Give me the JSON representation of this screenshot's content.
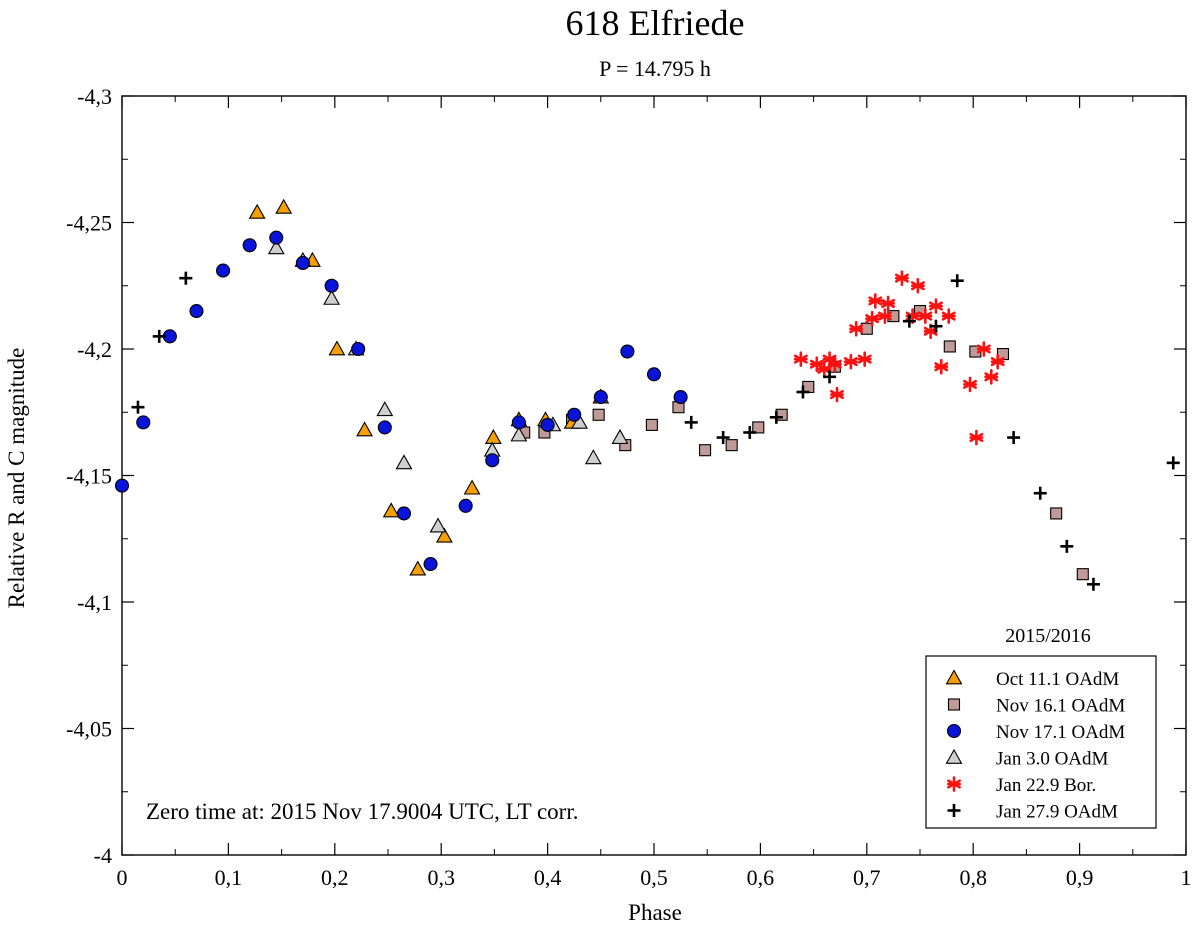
{
  "chart_data": {
    "type": "scatter",
    "title": "618 Elfriede",
    "subtitle": "P = 14.795 h",
    "xlabel": "Phase",
    "ylabel": "Relative R and C magnitude",
    "xlim": [
      0,
      1
    ],
    "ylim": [
      -4.3,
      -4.0
    ],
    "y_inverted": true,
    "x_ticks": [
      0,
      0.1,
      0.2,
      0.3,
      0.4,
      0.5,
      0.6,
      0.7,
      0.8,
      0.9,
      1
    ],
    "x_tick_labels": [
      "0",
      "0,1",
      "0,2",
      "0,3",
      "0,4",
      "0,5",
      "0,6",
      "0,7",
      "0,8",
      "0,9",
      "1"
    ],
    "y_ticks": [
      -4.3,
      -4.25,
      -4.2,
      -4.15,
      -4.1,
      -4.05,
      -4.0
    ],
    "y_tick_labels": [
      "-4,3",
      "-4,25",
      "-4,2",
      "-4,15",
      "-4,1",
      "-4,05",
      "-4"
    ],
    "annotation": "Zero time at: 2015 Nov 17.9004 UTC, LT corr.",
    "legend_title": "2015/2016",
    "legend_position": "bottom-right",
    "series": [
      {
        "name": "Oct 11.1 OAdM",
        "marker": "triangle",
        "color": "#f5a000",
        "x": [
          0.127,
          0.152,
          0.179,
          0.202,
          0.228,
          0.253,
          0.278,
          0.303,
          0.329,
          0.349,
          0.373,
          0.398,
          0.423,
          0.45
        ],
        "y": [
          -4.254,
          -4.256,
          -4.235,
          -4.2,
          -4.168,
          -4.136,
          -4.113,
          -4.126,
          -4.145,
          -4.165,
          -4.172,
          -4.172,
          -4.171,
          -4.181
        ]
      },
      {
        "name": "Nov 16.1 OAdM",
        "marker": "square",
        "color": "#c09a96",
        "x": [
          0.378,
          0.397,
          0.423,
          0.448,
          0.473,
          0.498,
          0.523,
          0.548,
          0.573,
          0.598,
          0.62,
          0.645,
          0.67,
          0.7,
          0.725,
          0.75,
          0.778,
          0.802,
          0.828,
          0.878,
          0.903
        ],
        "y": [
          -4.167,
          -4.167,
          -4.172,
          -4.174,
          -4.162,
          -4.17,
          -4.177,
          -4.16,
          -4.162,
          -4.169,
          -4.174,
          -4.185,
          -4.193,
          -4.208,
          -4.213,
          -4.215,
          -4.201,
          -4.199,
          -4.198,
          -4.135,
          -4.111
        ]
      },
      {
        "name": "Nov 17.1 OAdM",
        "marker": "circle",
        "color": "#0a14d8",
        "x": [
          0.0,
          0.02,
          0.045,
          0.07,
          0.095,
          0.12,
          0.145,
          0.17,
          0.197,
          0.222,
          0.247,
          0.265,
          0.29,
          0.323,
          0.348,
          0.373,
          0.4,
          0.425,
          0.45,
          0.475,
          0.5,
          0.525
        ],
        "y": [
          -4.146,
          -4.171,
          -4.205,
          -4.215,
          -4.231,
          -4.241,
          -4.244,
          -4.234,
          -4.225,
          -4.2,
          -4.169,
          -4.135,
          -4.115,
          -4.138,
          -4.156,
          -4.171,
          -4.17,
          -4.174,
          -4.181,
          -4.199,
          -4.19,
          -4.181
        ]
      },
      {
        "name": "Jan 3.0 OAdM",
        "marker": "triangle",
        "color": "#cfcfcf",
        "x": [
          0.145,
          0.17,
          0.197,
          0.22,
          0.247,
          0.265,
          0.297,
          0.348,
          0.373,
          0.405,
          0.43,
          0.443,
          0.468
        ],
        "y": [
          -4.24,
          -4.235,
          -4.22,
          -4.2,
          -4.176,
          -4.155,
          -4.13,
          -4.16,
          -4.166,
          -4.17,
          -4.171,
          -4.157,
          -4.165
        ]
      },
      {
        "name": "Jan 22.9 Bor.",
        "marker": "asterisk",
        "color": "#ff1010",
        "x": [
          0.638,
          0.653,
          0.66,
          0.665,
          0.67,
          0.672,
          0.685,
          0.69,
          0.698,
          0.705,
          0.708,
          0.717,
          0.72,
          0.733,
          0.743,
          0.748,
          0.755,
          0.76,
          0.765,
          0.77,
          0.777,
          0.797,
          0.803,
          0.81,
          0.817,
          0.823
        ],
        "y": [
          -4.196,
          -4.194,
          -4.192,
          -4.196,
          -4.194,
          -4.182,
          -4.195,
          -4.208,
          -4.196,
          -4.212,
          -4.219,
          -4.213,
          -4.218,
          -4.228,
          -4.213,
          -4.225,
          -4.213,
          -4.207,
          -4.217,
          -4.193,
          -4.213,
          -4.186,
          -4.165,
          -4.2,
          -4.189,
          -4.195
        ]
      },
      {
        "name": "Jan 27.9 OAdM",
        "marker": "plus",
        "color": "#000000",
        "x": [
          0.015,
          0.035,
          0.06,
          0.535,
          0.565,
          0.59,
          0.615,
          0.64,
          0.665,
          0.74,
          0.765,
          0.785,
          0.838,
          0.863,
          0.888,
          0.913,
          0.988
        ],
        "y": [
          -4.177,
          -4.205,
          -4.228,
          -4.171,
          -4.165,
          -4.167,
          -4.173,
          -4.183,
          -4.189,
          -4.211,
          -4.209,
          -4.227,
          -4.165,
          -4.143,
          -4.122,
          -4.107,
          -4.155
        ]
      }
    ]
  }
}
